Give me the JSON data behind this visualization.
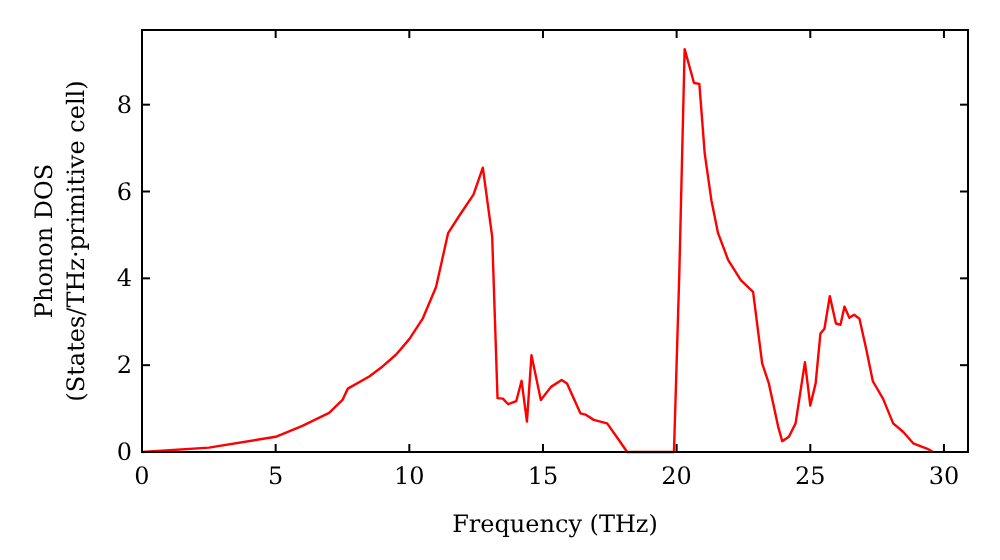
{
  "chart_data": {
    "type": "line",
    "xlabel": "Frequency (THz)",
    "ylabel": "Phonon DOS\n(States/THz·primitive cell)",
    "xlim": [
      0,
      30.9
    ],
    "ylim": [
      0,
      9.72
    ],
    "xticks": [
      0,
      5,
      10,
      15,
      20,
      25,
      30
    ],
    "yticks": [
      0,
      2,
      4,
      6,
      8
    ],
    "grid": false,
    "line_style": "solid",
    "series": [
      {
        "color": "#ff0000",
        "x": [
          0,
          2.5,
          5,
          6,
          7,
          7.5,
          7.7,
          8.5,
          9,
          9.5,
          10,
          10.5,
          11,
          11.2,
          11.45,
          11.9,
          12.4,
          12.75,
          13.1,
          13.3,
          13.5,
          13.7,
          14,
          14.2,
          14.4,
          14.57,
          14.92,
          15.3,
          15.7,
          15.9,
          16.4,
          16.6,
          16.9,
          17.4,
          17.8,
          18.15,
          19.9,
          20.1,
          20.3,
          20.65,
          20.85,
          21.05,
          21.3,
          21.55,
          21.93,
          22.4,
          22.86,
          23.2,
          23.45,
          23.8,
          23.95,
          24.2,
          24.45,
          24.8,
          25.0,
          25.2,
          25.38,
          25.53,
          25.73,
          25.96,
          26.13,
          26.28,
          26.46,
          26.64,
          26.84,
          27.1,
          27.34,
          27.72,
          28.1,
          28.48,
          28.85,
          29.36,
          29.6
        ],
        "values": [
          0,
          0.1,
          0.35,
          0.6,
          0.9,
          1.2,
          1.46,
          1.74,
          1.97,
          2.24,
          2.6,
          3.07,
          3.8,
          4.35,
          5.04,
          5.47,
          5.93,
          6.55,
          4.96,
          1.24,
          1.23,
          1.1,
          1.17,
          1.64,
          0.7,
          2.23,
          1.2,
          1.5,
          1.66,
          1.58,
          0.89,
          0.86,
          0.74,
          0.66,
          0.31,
          0,
          0,
          4.1,
          9.28,
          8.5,
          8.48,
          6.88,
          5.8,
          5.04,
          4.42,
          3.96,
          3.69,
          2.04,
          1.58,
          0.58,
          0.25,
          0.35,
          0.66,
          2.07,
          1.07,
          1.58,
          2.73,
          2.84,
          3.59,
          2.96,
          2.93,
          3.35,
          3.09,
          3.16,
          3.07,
          2.35,
          1.63,
          1.23,
          0.66,
          0.46,
          0.2,
          0.08,
          0
        ]
      }
    ]
  }
}
